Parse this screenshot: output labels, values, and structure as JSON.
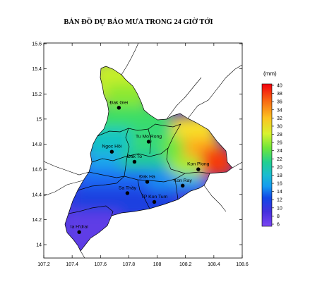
{
  "title": "BẢN ĐỒ DỰ BÁO MƯA TRONG 24 GIỜ TỚI",
  "chart_data": {
    "type": "heatmap",
    "x_ticks": [
      "107.2",
      "107.4",
      "107.6",
      "107.8",
      "108",
      "108.2",
      "108.4",
      "108.6"
    ],
    "y_ticks": [
      "15.6",
      "15.4",
      "15.2",
      "15",
      "14.8",
      "14.6",
      "14.4",
      "14.2",
      "14"
    ],
    "xlim": [
      107.2,
      108.6
    ],
    "ylim": [
      13.9,
      15.6
    ],
    "colorbar": {
      "unit": "(mm)",
      "min": 5,
      "max": 40,
      "ticks": [
        "40",
        "38",
        "36",
        "34",
        "32",
        "30",
        "28",
        "26",
        "24",
        "22",
        "20",
        "18",
        "16",
        "14",
        "12",
        "10",
        "8",
        "6"
      ],
      "colors": [
        "#f2000d",
        "#f5350f",
        "#f86912",
        "#fb9a1a",
        "#fcc322",
        "#f8e82a",
        "#d8f22f",
        "#a6ee33",
        "#6fe63a",
        "#3fdc5a",
        "#22cf91",
        "#1cbcd0",
        "#169bf0",
        "#1270f5",
        "#1147e6",
        "#2530d6",
        "#4630dd",
        "#7b45f2"
      ]
    },
    "places": [
      {
        "name": "Đak Glei",
        "lon": 107.73,
        "lat": 15.09
      },
      {
        "name": "Tu Mo Rong",
        "lon": 107.94,
        "lat": 14.82
      },
      {
        "name": "Ngoc Hồi",
        "lon": 107.68,
        "lat": 14.74
      },
      {
        "name": "Đak To",
        "lon": 107.84,
        "lat": 14.66
      },
      {
        "name": "Kon Plong",
        "lon": 108.29,
        "lat": 14.6
      },
      {
        "name": "Đak Ha",
        "lon": 107.93,
        "lat": 14.5
      },
      {
        "name": "Sa Thầy",
        "lon": 107.79,
        "lat": 14.41
      },
      {
        "name": "Kon Ray",
        "lon": 108.18,
        "lat": 14.47
      },
      {
        "name": "TP Kon Tum",
        "lon": 107.98,
        "lat": 14.34
      },
      {
        "name": "Ia H'drai",
        "lon": 107.45,
        "lat": 14.1
      }
    ]
  }
}
